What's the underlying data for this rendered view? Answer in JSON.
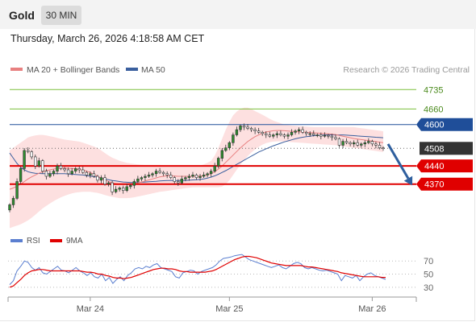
{
  "header": {
    "title": "Gold",
    "interval": "30 MIN",
    "timestamp": "Thursday, March 26, 2026 4:18:58 AM CET"
  },
  "legend": {
    "ma20_bb": "MA 20 + Bollinger Bands",
    "ma50": "MA 50",
    "credit": "Research © 2026 Trading Central"
  },
  "colors": {
    "candle": "#2e8b2e",
    "ma20": "#e88080",
    "bollinger_fill": "#fde0e0",
    "ma50": "#3a5f9e",
    "resistance": "#7cbf3c",
    "pivot": "#1f4e99",
    "support": "#e00000",
    "price_tag": "#333333",
    "arrow": "#2f5f9e",
    "rsi": "#5b7fd0",
    "rsi_ma": "#e00000"
  },
  "chart_data": [
    {
      "type": "candlestick",
      "title": "Gold",
      "x_tick_labels": [
        "Mar 24",
        "Mar 25",
        "Mar 26"
      ],
      "ylim": [
        4195,
        4770
      ],
      "levels": [
        {
          "value": 4735,
          "label": "4735",
          "role": "resistance"
        },
        {
          "value": 4660,
          "label": "4660",
          "role": "resistance"
        },
        {
          "value": 4600,
          "label": "4600",
          "role": "pivot"
        },
        {
          "value": 4508,
          "label": "4508",
          "role": "last_price"
        },
        {
          "value": 4440,
          "label": "4440",
          "role": "support"
        },
        {
          "value": 4370,
          "label": "4370",
          "role": "support"
        }
      ],
      "forecast_arrow": {
        "from": 4525,
        "to": 4365
      },
      "close": [
        4290,
        4315,
        4380,
        4430,
        4500,
        4495,
        4475,
        4440,
        4460,
        4420,
        4400,
        4410,
        4420,
        4440,
        4430,
        4425,
        4410,
        4420,
        4430,
        4425,
        4415,
        4405,
        4410,
        4400,
        4385,
        4395,
        4370,
        4375,
        4340,
        4350,
        4355,
        4345,
        4360,
        4365,
        4380,
        4390,
        4395,
        4400,
        4405,
        4410,
        4420,
        4415,
        4410,
        4405,
        4395,
        4380,
        4375,
        4390,
        4395,
        4400,
        4405,
        4395,
        4400,
        4405,
        4410,
        4420,
        4440,
        4470,
        4500,
        4510,
        4530,
        4560,
        4580,
        4595,
        4590,
        4585,
        4580,
        4575,
        4570,
        4565,
        4560,
        4555,
        4560,
        4565,
        4560,
        4555,
        4560,
        4570,
        4575,
        4580,
        4570,
        4565,
        4565,
        4560,
        4560,
        4555,
        4558,
        4555,
        4550,
        4545,
        4520,
        4535,
        4530,
        4525,
        4530,
        4520,
        4525,
        4530,
        4535,
        4525,
        4520,
        4510,
        4508
      ],
      "ma20": [
        4350,
        4355,
        4362,
        4370,
        4380,
        4390,
        4398,
        4405,
        4412,
        4418,
        4422,
        4425,
        4428,
        4430,
        4432,
        4432,
        4431,
        4430,
        4428,
        4426,
        4424,
        4420,
        4415,
        4408,
        4400,
        4393,
        4386,
        4380,
        4375,
        4372,
        4370,
        4369,
        4369,
        4370,
        4372,
        4375,
        4378,
        4382,
        4386,
        4390,
        4394,
        4398,
        4400,
        4402,
        4402,
        4401,
        4400,
        4400,
        4400,
        4400,
        4400,
        4400,
        4401,
        4403,
        4406,
        4410,
        4418,
        4428,
        4440,
        4454,
        4468,
        4482,
        4496,
        4510,
        4522,
        4534,
        4544,
        4553,
        4560,
        4566,
        4571,
        4574,
        4576,
        4577,
        4577,
        4576,
        4575,
        4574,
        4573,
        4572,
        4571,
        4570,
        4569,
        4568,
        4567,
        4566,
        4565,
        4564,
        4563,
        4561,
        4558,
        4555,
        4552,
        4549,
        4546,
        4544,
        4542,
        4540,
        4538,
        4536,
        4534,
        4532,
        4530
      ],
      "ma50": [
        4490,
        4470,
        4450,
        4435,
        4425,
        4418,
        4414,
        4412,
        4411,
        4410,
        4410,
        4410,
        4410,
        4410,
        4410,
        4410,
        4409,
        4408,
        4407,
        4406,
        4405,
        4403,
        4401,
        4399,
        4396,
        4393,
        4390,
        4387,
        4384,
        4382,
        4380,
        4378,
        4377,
        4376,
        4376,
        4376,
        4377,
        4378,
        4379,
        4380,
        4381,
        4382,
        4383,
        4384,
        4384,
        4384,
        4384,
        4384,
        4384,
        4385,
        4386,
        4387,
        4388,
        4390,
        4393,
        4397,
        4402,
        4408,
        4415,
        4422,
        4430,
        4438,
        4446,
        4454,
        4462,
        4470,
        4478,
        4486,
        4494,
        4500,
        4506,
        4512,
        4518,
        4523,
        4528,
        4533,
        4537,
        4541,
        4545,
        4548,
        4551,
        4553,
        4555,
        4557,
        4558,
        4559,
        4560,
        4560,
        4560,
        4560,
        4560,
        4560,
        4559,
        4558,
        4557,
        4556,
        4555,
        4554,
        4553,
        4552,
        4551,
        4550,
        4549
      ],
      "bb_upper": [
        4500,
        4510,
        4520,
        4530,
        4540,
        4550,
        4555,
        4558,
        4560,
        4560,
        4558,
        4555,
        4552,
        4548,
        4545,
        4542,
        4540,
        4538,
        4536,
        4534,
        4530,
        4525,
        4520,
        4515,
        4510,
        4500,
        4490,
        4480,
        4472,
        4466,
        4460,
        4456,
        4452,
        4450,
        4448,
        4446,
        4445,
        4444,
        4444,
        4444,
        4444,
        4444,
        4443,
        4442,
        4441,
        4440,
        4440,
        4440,
        4440,
        4440,
        4440,
        4440,
        4442,
        4446,
        4452,
        4460,
        4480,
        4510,
        4545,
        4580,
        4610,
        4635,
        4650,
        4660,
        4665,
        4665,
        4660,
        4652,
        4645,
        4638,
        4630,
        4622,
        4615,
        4610,
        4605,
        4600,
        4598,
        4596,
        4595,
        4594,
        4593,
        4592,
        4591,
        4590,
        4590,
        4590,
        4590,
        4590,
        4590,
        4590,
        4590,
        4590,
        4590,
        4590,
        4590,
        4588,
        4586,
        4584,
        4582,
        4580,
        4578,
        4576,
        4574
      ],
      "bb_lower": [
        4200,
        4205,
        4210,
        4215,
        4222,
        4230,
        4240,
        4252,
        4264,
        4276,
        4286,
        4295,
        4304,
        4312,
        4319,
        4325,
        4330,
        4334,
        4337,
        4339,
        4340,
        4340,
        4340,
        4338,
        4336,
        4332,
        4328,
        4324,
        4321,
        4318,
        4316,
        4316,
        4316,
        4317,
        4319,
        4322,
        4325,
        4328,
        4331,
        4334,
        4337,
        4340,
        4342,
        4344,
        4346,
        4348,
        4350,
        4352,
        4354,
        4356,
        4358,
        4358,
        4358,
        4358,
        4358,
        4358,
        4358,
        4358,
        4360,
        4370,
        4385,
        4405,
        4425,
        4445,
        4462,
        4478,
        4492,
        4504,
        4514,
        4522,
        4528,
        4532,
        4534,
        4535,
        4535,
        4534,
        4533,
        4532,
        4531,
        4530,
        4529,
        4528,
        4527,
        4526,
        4525,
        4524,
        4523,
        4522,
        4521,
        4520,
        4518,
        4516,
        4514,
        4512,
        4510,
        4508,
        4506,
        4504,
        4502,
        4500,
        4498,
        4496,
        4494
      ]
    },
    {
      "type": "line",
      "title": "RSI",
      "series_names": [
        "RSI",
        "9MA"
      ],
      "y_tick_labels": [
        "70",
        "50",
        "30"
      ],
      "ylim": [
        20,
        85
      ],
      "rsi": [
        34,
        40,
        55,
        62,
        70,
        68,
        60,
        56,
        60,
        52,
        50,
        54,
        58,
        62,
        56,
        55,
        52,
        56,
        60,
        55,
        52,
        48,
        52,
        46,
        44,
        50,
        40,
        45,
        36,
        42,
        46,
        40,
        48,
        52,
        58,
        60,
        58,
        62,
        60,
        64,
        66,
        60,
        58,
        56,
        54,
        46,
        44,
        52,
        54,
        56,
        55,
        50,
        54,
        56,
        58,
        60,
        64,
        70,
        74,
        75,
        76,
        78,
        79,
        80,
        76,
        72,
        70,
        68,
        66,
        64,
        62,
        60,
        62,
        64,
        60,
        58,
        62,
        66,
        68,
        66,
        60,
        58,
        60,
        58,
        56,
        55,
        56,
        54,
        52,
        50,
        40,
        48,
        46,
        44,
        48,
        40,
        46,
        50,
        52,
        48,
        46,
        44,
        42
      ],
      "rsi_ma": [
        30,
        32,
        37,
        42,
        48,
        52,
        55,
        56,
        57,
        57,
        56,
        55,
        55,
        55,
        55,
        55,
        55,
        55,
        55,
        55,
        54,
        53,
        53,
        52,
        50,
        50,
        48,
        47,
        45,
        44,
        44,
        43,
        44,
        45,
        47,
        49,
        51,
        53,
        55,
        57,
        58,
        59,
        59,
        58,
        58,
        57,
        55,
        54,
        54,
        53,
        53,
        53,
        53,
        53,
        54,
        55,
        57,
        60,
        63,
        66,
        69,
        72,
        74,
        76,
        77,
        77,
        76,
        75,
        73,
        71,
        69,
        67,
        66,
        65,
        64,
        63,
        63,
        63,
        63,
        63,
        62,
        61,
        61,
        60,
        59,
        58,
        57,
        56,
        55,
        54,
        52,
        51,
        50,
        49,
        48,
        47,
        46,
        46,
        46,
        46,
        46,
        45,
        45
      ]
    }
  ]
}
